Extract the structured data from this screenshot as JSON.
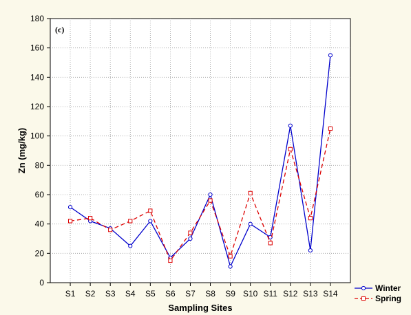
{
  "chart_data": {
    "type": "line",
    "panel_label": "(c)",
    "xlabel": "Sampling Sites",
    "ylabel": "Zn (mg/kg)",
    "categories": [
      "S1",
      "S2",
      "S3",
      "S4",
      "S5",
      "S6",
      "S7",
      "S8",
      "S9",
      "S10",
      "S11",
      "S12",
      "S13",
      "S14"
    ],
    "ylim": [
      0,
      180
    ],
    "yticks": [
      0,
      20,
      40,
      60,
      80,
      100,
      120,
      140,
      160,
      180
    ],
    "grid": true,
    "legend_position": "bottom-right",
    "series": [
      {
        "name": "Winter",
        "color": "#0000cc",
        "line_style": "solid",
        "marker": "circle",
        "values": [
          51.5,
          42,
          37,
          25,
          42,
          17,
          30,
          60,
          11,
          40,
          31,
          107,
          22,
          155
        ]
      },
      {
        "name": "Spring",
        "color": "#dd0000",
        "line_style": "dashed",
        "marker": "square",
        "values": [
          42,
          44,
          36,
          42,
          49,
          15,
          34,
          56,
          18,
          61,
          27,
          91,
          44,
          105
        ]
      }
    ]
  }
}
